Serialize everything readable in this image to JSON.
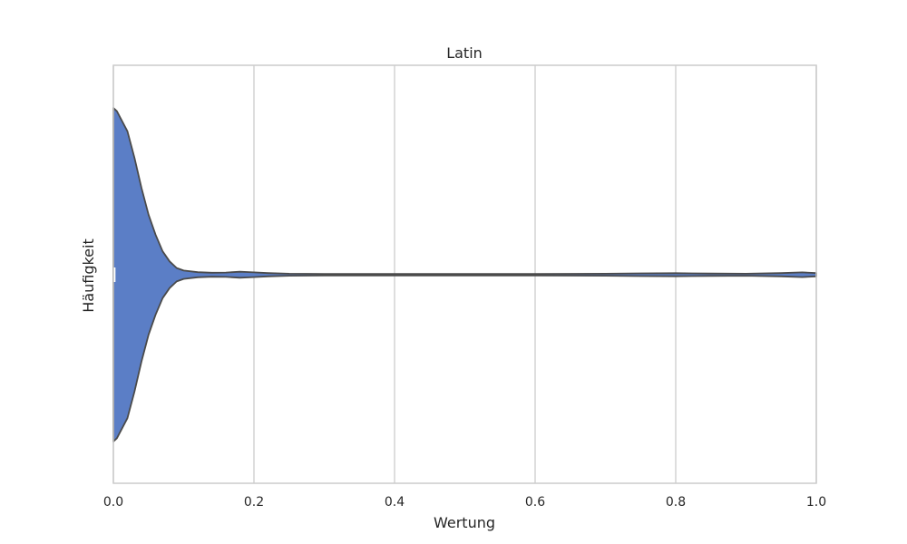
{
  "chart_data": {
    "type": "violin",
    "title": "Latin",
    "xlabel": "Wertung",
    "ylabel": "Häufigkeit",
    "xlim": [
      0,
      1
    ],
    "x_ticks": [
      0.0,
      0.2,
      0.4,
      0.6,
      0.8,
      1.0
    ],
    "x_tick_labels": [
      "0.0",
      "0.2",
      "0.4",
      "0.6",
      "0.8",
      "1.0"
    ],
    "grid": "vertical",
    "orientation": "horizontal",
    "colors": {
      "fill": "#5b7ec6",
      "edge": "#4a4a4a",
      "grid": "#d3d3d3",
      "frame": "#cccccc"
    },
    "density_profile": {
      "x": [
        0.0,
        0.005,
        0.02,
        0.03,
        0.04,
        0.05,
        0.06,
        0.07,
        0.08,
        0.09,
        0.1,
        0.12,
        0.14,
        0.16,
        0.18,
        0.2,
        0.22,
        0.25,
        0.3,
        0.4,
        0.5,
        0.6,
        0.7,
        0.75,
        0.8,
        0.85,
        0.9,
        0.95,
        0.98,
        1.0
      ],
      "half_width": [
        1.0,
        0.98,
        0.86,
        0.7,
        0.52,
        0.36,
        0.24,
        0.14,
        0.08,
        0.04,
        0.025,
        0.015,
        0.012,
        0.013,
        0.018,
        0.014,
        0.01,
        0.006,
        0.005,
        0.005,
        0.005,
        0.005,
        0.006,
        0.008,
        0.009,
        0.007,
        0.006,
        0.01,
        0.014,
        0.01
      ]
    },
    "box": {
      "q1": 0.0,
      "median": 0.0,
      "q3": 0.003
    }
  }
}
